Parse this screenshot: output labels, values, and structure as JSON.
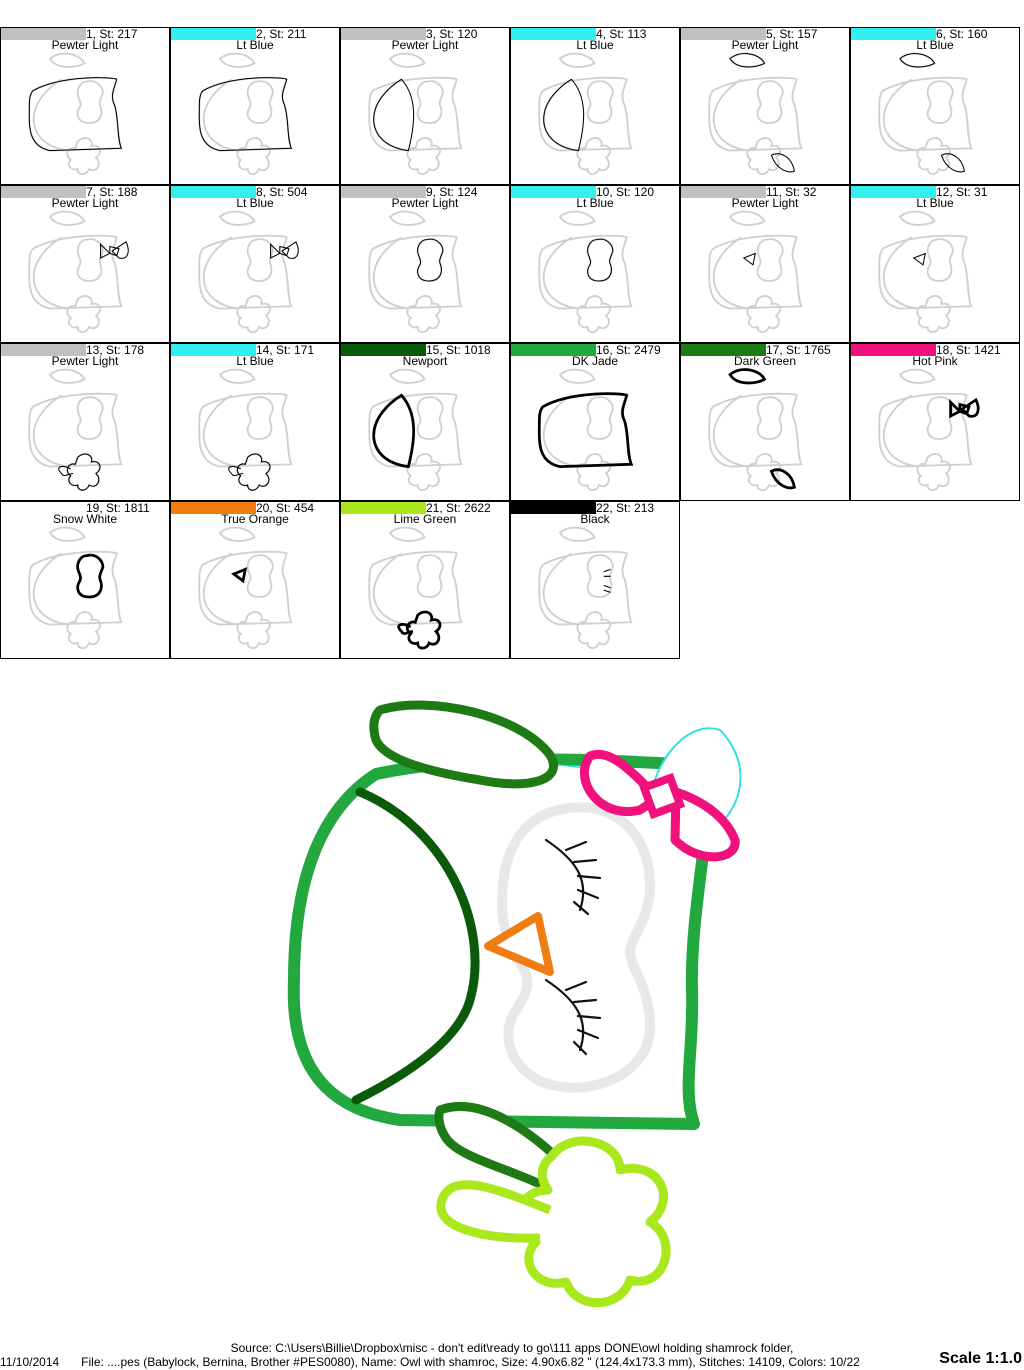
{
  "stops": [
    {
      "label": "1, St: 217",
      "name": "Pewter Light",
      "color": "#c0c0c0",
      "bar": 0.5,
      "part": "body"
    },
    {
      "label": "2, St: 211",
      "name": "Lt Blue",
      "color": "#33f0f0",
      "bar": 0.5,
      "part": "body"
    },
    {
      "label": "3, St: 120",
      "name": "Pewter Light",
      "color": "#c0c0c0",
      "bar": 0.5,
      "part": "wing"
    },
    {
      "label": "4, St: 113",
      "name": "Lt Blue",
      "color": "#33f0f0",
      "bar": 0.5,
      "part": "wing"
    },
    {
      "label": "5, St: 157",
      "name": "Pewter Light",
      "color": "#c0c0c0",
      "bar": 0.5,
      "part": "leaves"
    },
    {
      "label": "6, St: 160",
      "name": "Lt Blue",
      "color": "#33f0f0",
      "bar": 0.5,
      "part": "leaves"
    },
    {
      "label": "7, St: 188",
      "name": "Pewter Light",
      "color": "#c0c0c0",
      "bar": 0.5,
      "part": "bow"
    },
    {
      "label": "8, St: 504",
      "name": "Lt Blue",
      "color": "#33f0f0",
      "bar": 0.5,
      "part": "bow"
    },
    {
      "label": "9, St: 124",
      "name": "Pewter Light",
      "color": "#c0c0c0",
      "bar": 0.5,
      "part": "eyes"
    },
    {
      "label": "10, St: 120",
      "name": "Lt Blue",
      "color": "#33f0f0",
      "bar": 0.5,
      "part": "eyes"
    },
    {
      "label": "11, St: 32",
      "name": "Pewter Light",
      "color": "#c0c0c0",
      "bar": 0.5,
      "part": "beak"
    },
    {
      "label": "12, St: 31",
      "name": "Lt Blue",
      "color": "#33f0f0",
      "bar": 0.5,
      "part": "beak"
    },
    {
      "label": "13, St: 178",
      "name": "Pewter Light",
      "color": "#c0c0c0",
      "bar": 0.5,
      "part": "shamrock"
    },
    {
      "label": "14, St: 171",
      "name": "Lt Blue",
      "color": "#33f0f0",
      "bar": 0.5,
      "part": "shamrock"
    },
    {
      "label": "15, St: 1018",
      "name": "Newport",
      "color": "#0a5a0a",
      "bar": 0.5,
      "part": "wing-arc"
    },
    {
      "label": "16, St: 2479",
      "name": "DK Jade",
      "color": "#22a83e",
      "bar": 0.5,
      "part": "body-thick"
    },
    {
      "label": "17, St: 1765",
      "name": "Dark Green",
      "color": "#1e7a14",
      "bar": 0.5,
      "part": "leaves-thick"
    },
    {
      "label": "18, St: 1421",
      "name": "Hot Pink",
      "color": "#f0117c",
      "bar": 0.5,
      "part": "bow-thick"
    },
    {
      "label": "19, St: 1811",
      "name": "Snow White",
      "color": "#ffffff",
      "bar": 0.5,
      "part": "eyes-thick"
    },
    {
      "label": "20, St: 454",
      "name": "True Orange",
      "color": "#f07d12",
      "bar": 0.5,
      "part": "beak-thick"
    },
    {
      "label": "21, St: 2622",
      "name": "Lime Green",
      "color": "#a9e81c",
      "bar": 0.5,
      "part": "shamrock-thick"
    },
    {
      "label": "22, St: 213",
      "name": "Black",
      "color": "#000000",
      "bar": 0.5,
      "part": "lashes"
    }
  ],
  "footer": {
    "source": "Source: C:\\Users\\Billie\\Dropbox\\misc - don't edit\\ready to go\\111 apps DONE\\owl holding shamrock folder,",
    "date": "11/10/2014",
    "file": "File: ....pes (Babylock, Bernina, Brother #PES0080), Name: Owl with shamroc, Size: 4.90x6.82 \" (124.4x173.3 mm), Stitches: 14109, Colors: 10/22",
    "scale": "Scale 1:1.0"
  }
}
